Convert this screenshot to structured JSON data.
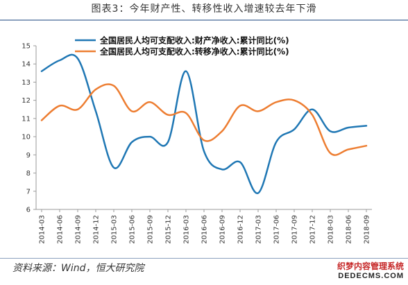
{
  "page": {
    "title": "图表3：今年财产性、转移性收入增速较去年下滑",
    "source": "资料来源：Wind，恒大研究院",
    "watermark_cn": "织梦内容管理系统",
    "watermark_en": "DEDECMS.COM"
  },
  "chart_data": {
    "type": "line",
    "title": "",
    "xlabel": "",
    "ylabel": "",
    "ylim": [
      6,
      15
    ],
    "yticks": [
      6,
      7,
      8,
      9,
      10,
      11,
      12,
      13,
      14,
      15
    ],
    "grid": false,
    "legend_position": "top-center",
    "x_tick_labels": [
      "2014-03",
      "2014-06",
      "2014-09",
      "2014-12",
      "2015-03",
      "2015-06",
      "2015-09",
      "2015-12",
      "2016-03",
      "2016-06",
      "2016-09",
      "2016-12",
      "2017-03",
      "2017-06",
      "2017-09",
      "2017-12",
      "2018-03",
      "2018-06",
      "2018-09"
    ],
    "series": [
      {
        "name": "全国居民人均可支配收入:财产净收入:累计同比(%)",
        "color": "#1f77b4",
        "values": [
          13.6,
          14.2,
          14.3,
          11.4,
          8.3,
          9.7,
          10.0,
          9.7,
          13.6,
          9.2,
          8.2,
          8.6,
          6.9,
          9.7,
          10.4,
          11.5,
          10.3,
          10.5,
          10.6
        ]
      },
      {
        "name": "全国居民人均可支配收入:转移净收入:累计同比(%)",
        "color": "#ed7d31",
        "values": [
          10.9,
          11.7,
          11.5,
          12.6,
          12.8,
          11.4,
          11.9,
          11.2,
          11.3,
          9.8,
          10.3,
          11.7,
          11.4,
          11.9,
          12.0,
          11.2,
          9.1,
          9.3,
          9.5
        ]
      }
    ]
  }
}
